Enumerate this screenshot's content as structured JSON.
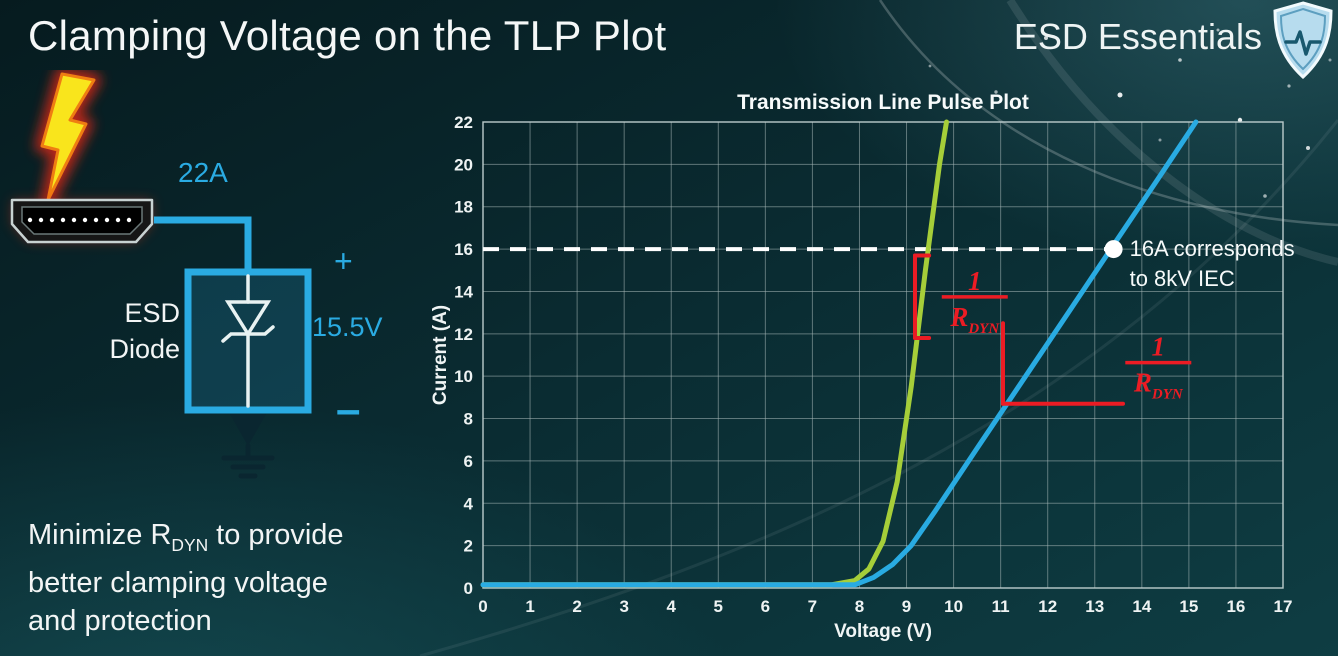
{
  "header": {
    "title": "Clamping Voltage on the TLP Plot",
    "brand": "ESD Essentials"
  },
  "icons": {
    "brand_logo": "shield-pulse-icon",
    "strike": "lightning-bolt-icon",
    "connector": "hdmi-connector-icon",
    "diode_symbol": "zener-diode-icon",
    "ground": "earth-ground-icon"
  },
  "colors": {
    "accent_cyan": "#2aabe2",
    "curve_green": "#a6ce39",
    "curve_blue": "#29abe2",
    "annotation_red": "#ec1c24",
    "threshold_line": "#ffffff",
    "background_teal": "#0a2b31"
  },
  "circuit": {
    "surge_current": "22A",
    "device_line1": "ESD",
    "device_line2": "Diode",
    "plus_sign": "+",
    "clamp_voltage": "15.5V",
    "minus_sign": "–"
  },
  "footnote": {
    "pre": "Minimize R",
    "sub": "DYN",
    "post": " to provide",
    "line2": "better clamping voltage",
    "line3": "and protection"
  },
  "chart_data": {
    "type": "line",
    "title": "Transmission Line Pulse Plot",
    "xlabel": "Voltage (V)",
    "ylabel": "Current (A)",
    "xlim": [
      0,
      17
    ],
    "ylim": [
      0,
      22
    ],
    "xticks": [
      0,
      1,
      2,
      3,
      4,
      5,
      6,
      7,
      8,
      9,
      10,
      11,
      12,
      13,
      14,
      15,
      16,
      17
    ],
    "yticks": [
      0,
      2,
      4,
      6,
      8,
      10,
      12,
      14,
      16,
      18,
      20,
      22
    ],
    "grid": true,
    "series": [
      {
        "name": "low-rdyn-diode-green",
        "color": "#a6ce39",
        "width": 5,
        "points": [
          [
            0,
            0.15
          ],
          [
            7.4,
            0.15
          ],
          [
            7.9,
            0.35
          ],
          [
            8.2,
            0.9
          ],
          [
            8.5,
            2.2
          ],
          [
            8.8,
            5.0
          ],
          [
            9.1,
            9.5
          ],
          [
            9.4,
            15.0
          ],
          [
            9.7,
            20.0
          ],
          [
            9.85,
            22
          ]
        ]
      },
      {
        "name": "high-rdyn-diode-blue",
        "color": "#29abe2",
        "width": 5,
        "points": [
          [
            0,
            0.15
          ],
          [
            7.9,
            0.15
          ],
          [
            8.3,
            0.5
          ],
          [
            8.7,
            1.1
          ],
          [
            9.1,
            2.0
          ],
          [
            9.6,
            3.6
          ],
          [
            10.5,
            6.6
          ],
          [
            11.5,
            9.9
          ],
          [
            12.5,
            13.2
          ],
          [
            13.4,
            16.2
          ],
          [
            14.4,
            19.5
          ],
          [
            15.15,
            22
          ]
        ]
      }
    ],
    "threshold": {
      "y": 16,
      "x_start": 0,
      "x_end": 13.4,
      "marker_x": 13.4,
      "color": "#ffffff",
      "label_line1": "16A corresponds",
      "label_line2": "to 8kV IEC"
    },
    "slope_annotations": [
      {
        "target": "green-curve",
        "shape": "bracket",
        "color": "#ec1c24",
        "x": 9.18,
        "y_top": 15.7,
        "y_bottom": 11.8,
        "tick_len": 0.3,
        "frac_x": 10.45,
        "frac_y": 13.6,
        "numerator": "1",
        "denominator": "R",
        "denominator_sub": "DYN"
      },
      {
        "target": "blue-curve",
        "shape": "angle",
        "color": "#ec1c24",
        "x": 11.05,
        "y_top": 12.5,
        "y_bottom": 8.7,
        "x_end": 13.6,
        "frac_x": 14.35,
        "frac_y": 10.5,
        "numerator": "1",
        "denominator": "R",
        "denominator_sub": "DYN"
      }
    ]
  }
}
